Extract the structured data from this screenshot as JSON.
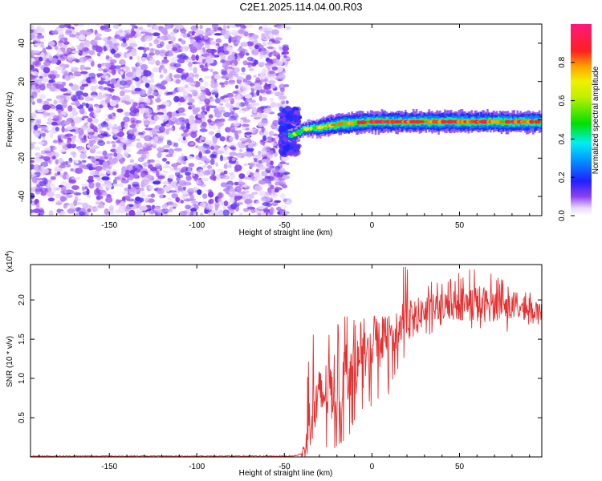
{
  "figure": {
    "title": "C2E1.2025.114.04.00.R03"
  },
  "chart_data": [
    {
      "type": "heatmap",
      "xlabel": "Height of straight line (km)",
      "ylabel": "Frequency (Hz)",
      "xlim": [
        -195,
        97
      ],
      "ylim": [
        -50,
        50
      ],
      "xticks": [
        -150,
        -100,
        -50,
        0,
        50
      ],
      "yticks": [
        -40,
        -20,
        0,
        20,
        40
      ],
      "colorbar": {
        "label": "Normalized spectral amplitude",
        "ticks": [
          0.0,
          0.2,
          0.4,
          0.6,
          0.8
        ],
        "tick_labels": [
          "0.0",
          "0.2",
          "0.4",
          "0.6",
          "0.8"
        ],
        "range": [
          0,
          1
        ],
        "colormap": "rainbow (white → purple → blue → cyan → green → yellow → orange → red → pink)"
      },
      "features": {
        "noise_region_x": [
          -195,
          -48
        ],
        "noise_amplitude_range": [
          0.0,
          0.15
        ],
        "narrowband_signal": {
          "x_range": [
            -48,
            97
          ],
          "frequency_hz": [
            {
              "x": -45,
              "y": -8
            },
            {
              "x": -40,
              "y": -5
            },
            {
              "x": -30,
              "y": -4
            },
            {
              "x": -18,
              "y": -2
            },
            {
              "x": 0,
              "y": -1
            },
            {
              "x": 50,
              "y": -1
            },
            {
              "x": 95,
              "y": -1
            }
          ],
          "peak_amplitude_range": [
            0.5,
            1.0
          ]
        }
      }
    },
    {
      "type": "line",
      "xlabel": "Height of straight line (km)",
      "ylabel": "SNR (10 * v/v)",
      "multiplier_label": "(x10",
      "multiplier_exponent": "4",
      "multiplier_close": ")",
      "xlim": [
        -195,
        97
      ],
      "ylim": [
        0,
        2.45
      ],
      "xticks": [
        -150,
        -100,
        -50,
        0,
        50
      ],
      "yticks": [
        0.5,
        1.0,
        1.5,
        2.0
      ],
      "ytick_labels": [
        "0.5",
        "1.0",
        "1.5",
        "2.0"
      ],
      "color": "#e53030",
      "series": [
        {
          "x": [
            -195,
            -45,
            -40,
            -38,
            -35,
            -32,
            -30,
            -25,
            -20,
            -15,
            -10,
            -5,
            0,
            5,
            10,
            15,
            20,
            30,
            40,
            50,
            60,
            70,
            80,
            90,
            95,
            97
          ],
          "y": [
            0.01,
            0.01,
            0.04,
            0.12,
            0.55,
            0.65,
            0.75,
            0.85,
            0.95,
            1.05,
            1.15,
            1.22,
            1.35,
            1.45,
            1.55,
            1.65,
            1.75,
            1.85,
            1.92,
            1.95,
            1.95,
            1.93,
            1.9,
            1.88,
            1.85,
            1.85
          ]
        }
      ],
      "envelope": {
        "x": [
          -40,
          -35,
          -30,
          -25,
          -20,
          -15,
          -10,
          0,
          10,
          18,
          25,
          40,
          60,
          80,
          95
        ],
        "low": [
          0.0,
          0.2,
          0.15,
          0.1,
          0.08,
          0.2,
          0.4,
          0.65,
          0.8,
          1.2,
          1.5,
          1.6,
          1.55,
          1.6,
          1.65
        ],
        "high": [
          0.1,
          1.65,
          1.55,
          1.6,
          1.75,
          1.8,
          1.75,
          1.8,
          1.8,
          2.45,
          2.3,
          2.25,
          2.45,
          2.2,
          2.05
        ]
      }
    }
  ]
}
